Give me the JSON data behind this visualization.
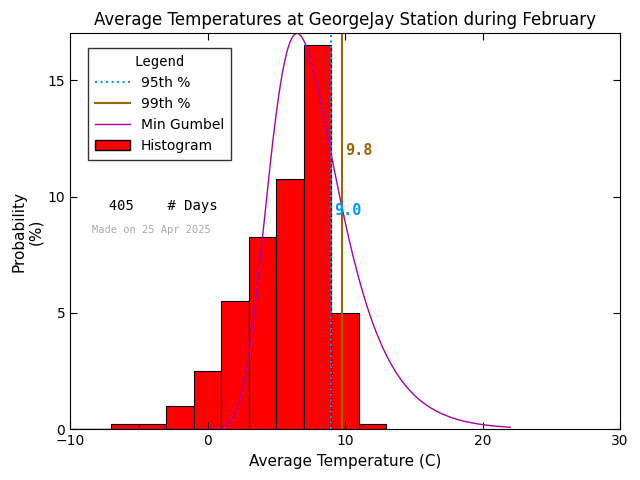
{
  "title": "Average Temperatures at GeorgeJay Station during February",
  "xlabel": "Average Temperature (C)",
  "ylabel": "Probability\n(%)",
  "xlim": [
    -10,
    30
  ],
  "ylim": [
    0,
    17
  ],
  "xticks": [
    -10,
    0,
    10,
    20,
    30
  ],
  "yticks": [
    0,
    5,
    10,
    15
  ],
  "bar_edges": [
    -7,
    -5,
    -3,
    -1,
    1,
    3,
    5,
    7,
    9,
    11
  ],
  "bar_heights": [
    0.25,
    0.25,
    1.0,
    2.5,
    5.5,
    8.25,
    10.75,
    16.5,
    5.0,
    0.25
  ],
  "bar_color": "#ff0000",
  "bar_edgecolor": "#000000",
  "gumbel_color": "#aa00aa",
  "p95_color": "#0099ff",
  "p99_color": "#996600",
  "p95_value": 9.0,
  "p99_value": 9.8,
  "n_days": 405,
  "made_on": "Made on 25 Apr 2025",
  "legend_title": "Legend",
  "background_color": "#ffffff",
  "title_fontsize": 12,
  "axis_fontsize": 11,
  "legend_fontsize": 10,
  "gumbel_mu": 6.5,
  "gumbel_beta": 2.5
}
